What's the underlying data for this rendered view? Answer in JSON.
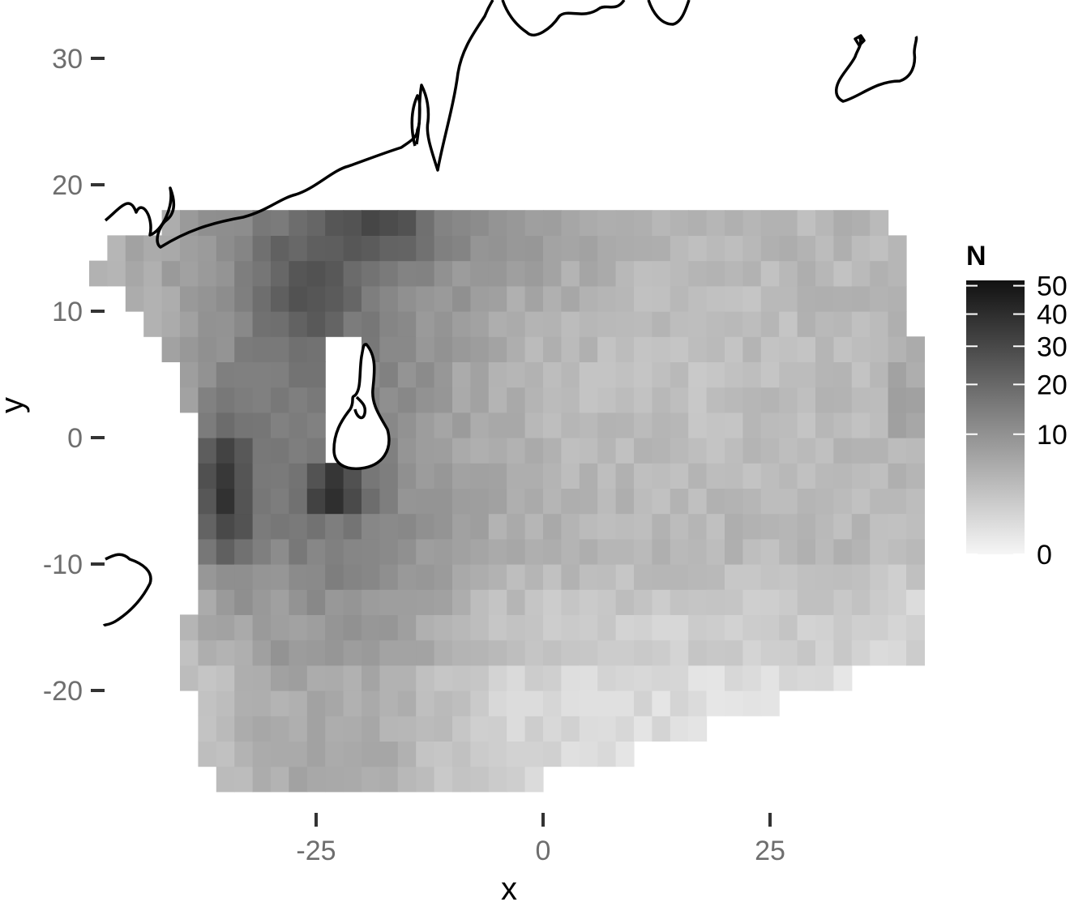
{
  "chart_data": {
    "type": "heatmap",
    "xlabel": "x",
    "ylabel": "y",
    "xlim": [
      -50,
      42
    ],
    "ylim": [
      -29.5,
      34.5
    ],
    "x_ticks": [
      -25,
      0,
      25
    ],
    "y_ticks": [
      -20,
      -10,
      0,
      10,
      20,
      30
    ],
    "x_tick_labels": [
      "-25",
      "0",
      "25"
    ],
    "y_tick_labels": [
      "-20",
      "-10",
      "0",
      "10",
      "20",
      "30"
    ],
    "cell_size": 2,
    "grid": false,
    "legend": {
      "title": "N",
      "position": "right",
      "scale": "sqrt",
      "range": [
        0,
        52
      ],
      "labels": [
        "0",
        "10",
        "20",
        "30",
        "40",
        "50"
      ],
      "ticks": [
        0,
        10,
        20,
        30,
        40,
        50
      ],
      "color_low": "#f6f6f6",
      "color_high": "#111111"
    },
    "colors": {
      "background": "#ffffff",
      "coastline": "#000000"
    },
    "cells_note_omitted": false
  }
}
